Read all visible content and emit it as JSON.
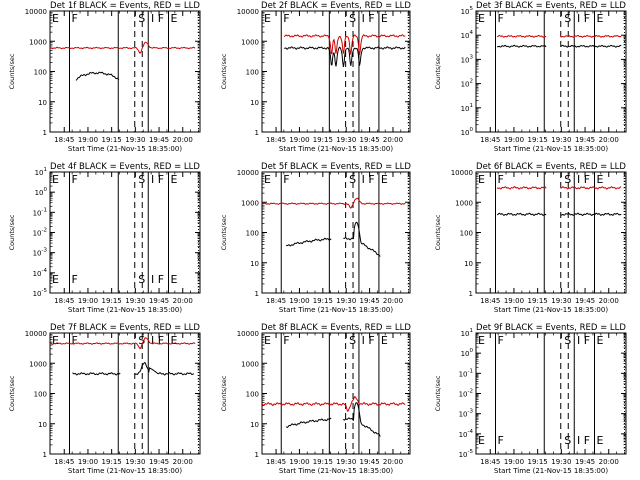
{
  "chart_data": [
    {
      "type": "line",
      "title": "Det 1f BLACK = Events, RED = LLD",
      "ylabel": "Counts/sec",
      "xlabel": "Start Time (21-Nov-15 18:35:00)",
      "yticks": [
        "1",
        "10",
        "100",
        "1000",
        "10000"
      ],
      "xticks": [
        "18:45",
        "19:00",
        "19:15",
        "19:30",
        "19:45",
        "20:00"
      ],
      "markers": [
        "E",
        "F",
        "S",
        "I",
        "F",
        "E"
      ],
      "series": [
        {
          "name": "Events",
          "color": "#000000",
          "profile": "arc"
        },
        {
          "name": "LLD",
          "color": "#cc0000",
          "profile": "flat_bump",
          "level": 600
        }
      ]
    },
    {
      "type": "line",
      "title": "Det 2f BLACK = Events, RED = LLD",
      "ylabel": "Counts/sec",
      "xlabel": "Start Time (21-Nov-15 18:35:00)",
      "yticks": [
        "1",
        "10",
        "100",
        "1000",
        "10000"
      ],
      "xticks": [
        "18:45",
        "19:00",
        "19:15",
        "19:30",
        "19:45",
        "20:00"
      ],
      "markers": [
        "E",
        "F",
        "S",
        "I",
        "F",
        "E"
      ],
      "series": [
        {
          "name": "Events",
          "color": "#000000",
          "profile": "dips",
          "level": 600
        },
        {
          "name": "LLD",
          "color": "#cc0000",
          "profile": "dips",
          "level": 1500
        }
      ]
    },
    {
      "type": "line",
      "title": "Det 3f BLACK = Events, RED = LLD",
      "ylabel": "Counts/sec",
      "xlabel": "Start Time (21-Nov-15 18:35:00)",
      "yticks": [
        "10^0",
        "10^1",
        "10^2",
        "10^3",
        "10^4",
        "10^5"
      ],
      "xticks": [
        "18:45",
        "19:00",
        "19:15",
        "19:30",
        "19:45",
        "20:00"
      ],
      "markers": [
        "E",
        "F",
        "S",
        "I",
        "F",
        "E"
      ],
      "series": [
        {
          "name": "Events",
          "color": "#000000",
          "profile": "flat",
          "level": 3500
        },
        {
          "name": "LLD",
          "color": "#cc0000",
          "profile": "flat",
          "level": 9000
        }
      ]
    },
    {
      "type": "line",
      "title": "Det 4f BLACK = Events, RED = LLD",
      "ylabel": "Counts/sec",
      "xlabel": "Start Time (21-Nov-15 18:35:00)",
      "yticks": [
        "10^-5",
        "10^-4",
        "10^-3",
        "10^-2",
        "10^-1",
        "10^0",
        "10^1"
      ],
      "xticks": [
        "18:45",
        "19:00",
        "19:15",
        "19:30",
        "19:45",
        "20:00"
      ],
      "markers": [
        "E",
        "F",
        "S",
        "I",
        "F",
        "E"
      ],
      "series": []
    },
    {
      "type": "line",
      "title": "Det 5f BLACK = Events, RED = LLD",
      "ylabel": "Counts/sec",
      "xlabel": "Start Time (21-Nov-15 18:35:00)",
      "yticks": [
        "1",
        "10",
        "100",
        "1000",
        "10000"
      ],
      "xticks": [
        "18:45",
        "19:00",
        "19:15",
        "19:30",
        "19:45",
        "20:00"
      ],
      "markers": [
        "E",
        "F",
        "S",
        "I",
        "F",
        "E"
      ],
      "series": [
        {
          "name": "Events",
          "color": "#000000",
          "profile": "arc_peak",
          "level": 35
        },
        {
          "name": "LLD",
          "color": "#cc0000",
          "profile": "flat_bump",
          "level": 900
        }
      ]
    },
    {
      "type": "line",
      "title": "Det 6f BLACK = Events, RED = LLD",
      "ylabel": "Counts/sec",
      "xlabel": "Start Time (21-Nov-15 18:35:00)",
      "yticks": [
        "1",
        "10",
        "100",
        "1000",
        "10000"
      ],
      "xticks": [
        "18:45",
        "19:00",
        "19:15",
        "19:30",
        "19:45",
        "20:00"
      ],
      "markers": [
        "E",
        "F",
        "S",
        "I",
        "F",
        "E"
      ],
      "series": [
        {
          "name": "Events",
          "color": "#000000",
          "profile": "flat",
          "level": 400
        },
        {
          "name": "LLD",
          "color": "#cc0000",
          "profile": "flat",
          "level": 3000
        }
      ]
    },
    {
      "type": "line",
      "title": "Det 7f BLACK = Events, RED = LLD",
      "ylabel": "Counts/sec",
      "xlabel": "Start Time (21-Nov-15 18:35:00)",
      "yticks": [
        "1",
        "10",
        "100",
        "1000",
        "10000"
      ],
      "xticks": [
        "18:45",
        "19:00",
        "19:15",
        "19:30",
        "19:45",
        "20:00"
      ],
      "markers": [
        "E",
        "F",
        "S",
        "I",
        "F",
        "E"
      ],
      "series": [
        {
          "name": "Events",
          "color": "#000000",
          "profile": "flat_peak",
          "level": 450
        },
        {
          "name": "LLD",
          "color": "#cc0000",
          "profile": "flat_bump",
          "level": 4500
        }
      ]
    },
    {
      "type": "line",
      "title": "Det 8f BLACK = Events, RED = LLD",
      "ylabel": "Counts/sec",
      "xlabel": "Start Time (21-Nov-15 18:35:00)",
      "yticks": [
        "1",
        "10",
        "100",
        "1000",
        "10000"
      ],
      "xticks": [
        "18:45",
        "19:00",
        "19:15",
        "19:30",
        "19:45",
        "20:00"
      ],
      "markers": [
        "E",
        "F",
        "S",
        "I",
        "F",
        "E"
      ],
      "series": [
        {
          "name": "Events",
          "color": "#000000",
          "profile": "arc_peak",
          "level": 8
        },
        {
          "name": "LLD",
          "color": "#cc0000",
          "profile": "wavy",
          "level": 45
        }
      ]
    },
    {
      "type": "line",
      "title": "Det 9f BLACK = Events, RED = LLD",
      "ylabel": "Counts/sec",
      "xlabel": "Start Time (21-Nov-15 18:35:00)",
      "yticks": [
        "10^-5",
        "10^-4",
        "10^-3",
        "10^-2",
        "10^-1",
        "10^0",
        "10^1"
      ],
      "xticks": [
        "18:45",
        "19:00",
        "19:15",
        "19:30",
        "19:45",
        "20:00"
      ],
      "markers": [
        "E",
        "F",
        "S",
        "I",
        "F",
        "E"
      ],
      "series": []
    }
  ]
}
